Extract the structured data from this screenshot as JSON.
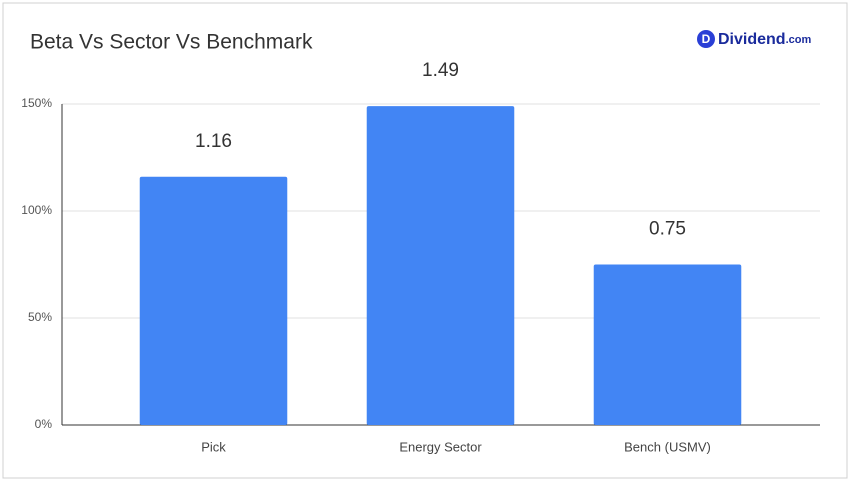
{
  "chart_data": {
    "type": "bar",
    "title": "Beta Vs Sector Vs Benchmark",
    "categories": [
      "Pick",
      "Energy Sector",
      "Bench (USMV)"
    ],
    "values": [
      116,
      149,
      75
    ],
    "value_labels": [
      "1.16",
      "1.49",
      "0.75"
    ],
    "color": "#4285f4",
    "ylim": [
      0,
      150
    ],
    "yticks": [
      {
        "value": 0,
        "label": "0%"
      },
      {
        "value": 50,
        "label": "50%"
      },
      {
        "value": 100,
        "label": "100%"
      },
      {
        "value": 150,
        "label": "150%"
      }
    ],
    "grid": true
  },
  "logo": {
    "icon": "D",
    "name": "Dividend",
    "suffix": ".com"
  }
}
